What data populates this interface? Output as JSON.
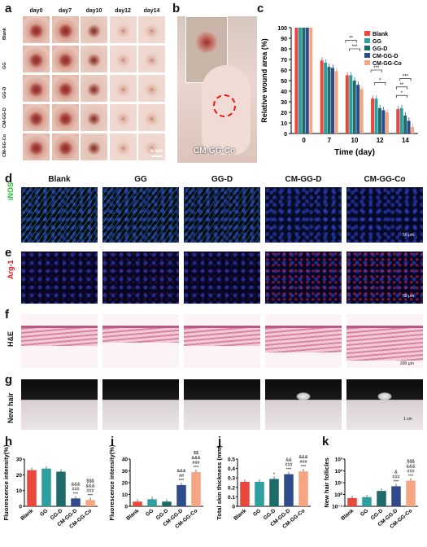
{
  "panels": {
    "a": {
      "letter": "a",
      "days": [
        "day0",
        "day7",
        "day10",
        "day12",
        "day14"
      ],
      "rows": [
        "Blank",
        "GG",
        "GG-D",
        "CM-GG-D",
        "CM-GG-Co"
      ],
      "scale": "5 mm"
    },
    "b": {
      "letter": "b",
      "caption": "CM-GG-Co"
    },
    "c": {
      "letter": "c"
    },
    "d": {
      "letter": "d",
      "row_label": "iNOS",
      "cols": [
        "Blank",
        "GG",
        "GG-D",
        "CM-GG-D",
        "CM-GG-Co"
      ],
      "scale": "50 μm"
    },
    "e": {
      "letter": "e",
      "row_label": "Arg-1",
      "scale": "50 μm"
    },
    "f": {
      "letter": "f",
      "row_label": "H&E",
      "scale": "200 μm"
    },
    "g": {
      "letter": "g",
      "row_label": "New hair",
      "scale": "1 cm"
    },
    "h": {
      "letter": "h"
    },
    "i": {
      "letter": "i"
    },
    "j": {
      "letter": "j"
    },
    "k": {
      "letter": "k"
    }
  },
  "colors": {
    "Blank": "#e8493c",
    "GG": "#2d9fa0",
    "GG-D": "#1f6b6a",
    "CM-GG-D": "#2f4b8c",
    "CM-GG-Co": "#f5a582"
  },
  "chart_data": [
    {
      "id": "c",
      "type": "bar",
      "xlabel": "Time (day)",
      "ylabel": "Relative wound area (%)",
      "categories": [
        "0",
        "7",
        "10",
        "12",
        "14"
      ],
      "ylim": [
        0,
        100
      ],
      "yticks": [
        0,
        10,
        20,
        30,
        40,
        50,
        60,
        70,
        80,
        90,
        100
      ],
      "series": [
        {
          "name": "Blank",
          "values": [
            100,
            69,
            55,
            33,
            23
          ]
        },
        {
          "name": "GG",
          "values": [
            100,
            67,
            55,
            33,
            24
          ]
        },
        {
          "name": "GG-D",
          "values": [
            100,
            63,
            50,
            24,
            17
          ]
        },
        {
          "name": "CM-GG-D",
          "values": [
            100,
            62,
            46,
            22,
            12
          ]
        },
        {
          "name": "CM-GG-Co",
          "values": [
            100,
            59,
            42,
            20,
            6
          ]
        }
      ],
      "legend": "top-right",
      "annotations": [
        "**",
        "***",
        "***",
        "*",
        "**",
        "***",
        "*"
      ]
    },
    {
      "id": "h",
      "type": "bar",
      "ylabel": "Fluorescence intensity(%)",
      "categories": [
        "Blank",
        "GG",
        "GG-D",
        "CM-GG-D",
        "CM-GG-Co"
      ],
      "values": [
        23,
        24,
        22,
        5,
        4
      ],
      "ylim": [
        0,
        30
      ],
      "yticks": [
        0,
        10,
        20,
        30
      ],
      "labels": [
        "",
        "",
        "",
        "&&&\n###\n***",
        "$$$\n&&&\n###\n***"
      ]
    },
    {
      "id": "i",
      "type": "bar",
      "ylabel": "Fluorescence intensity(%)",
      "categories": [
        "Blank",
        "GG",
        "GG-D",
        "CM-GG-D",
        "CM-GG-Co"
      ],
      "values": [
        4,
        6,
        4,
        18,
        29
      ],
      "ylim": [
        0,
        40
      ],
      "yticks": [
        0,
        10,
        20,
        30,
        40
      ],
      "labels": [
        "",
        "",
        "",
        "&&&\n##\n***",
        "$$\n&&&\n###\n***"
      ]
    },
    {
      "id": "j",
      "type": "bar",
      "ylabel": "Total skin thickness (mm)",
      "categories": [
        "Blank",
        "GG",
        "GG-D",
        "CM-GG-D",
        "CM-GG-Co"
      ],
      "values": [
        0.26,
        0.26,
        0.29,
        0.34,
        0.37
      ],
      "ylim": [
        0,
        0.5
      ],
      "yticks": [
        0.0,
        0.1,
        0.2,
        0.3,
        0.4,
        0.5
      ],
      "labels": [
        "",
        "",
        "*",
        "&&\n###\n***",
        "&&&\n###\n***"
      ]
    },
    {
      "id": "k",
      "type": "bar",
      "ylabel": "New hair follicles",
      "yscale": "log",
      "categories": [
        "Blank",
        "GG",
        "GG-D",
        "CM-GG-D",
        "CM-GG-Co"
      ],
      "values": [
        0.5,
        0.6,
        2,
        5,
        15
      ],
      "ylim": [
        0.1,
        1000
      ],
      "yticks": [
        "10⁻¹",
        "10⁰",
        "10¹",
        "10²",
        "10³"
      ],
      "labels": [
        "",
        "",
        "",
        "&\n###\n***",
        "$$$\n&&&\n###\n***"
      ]
    }
  ]
}
